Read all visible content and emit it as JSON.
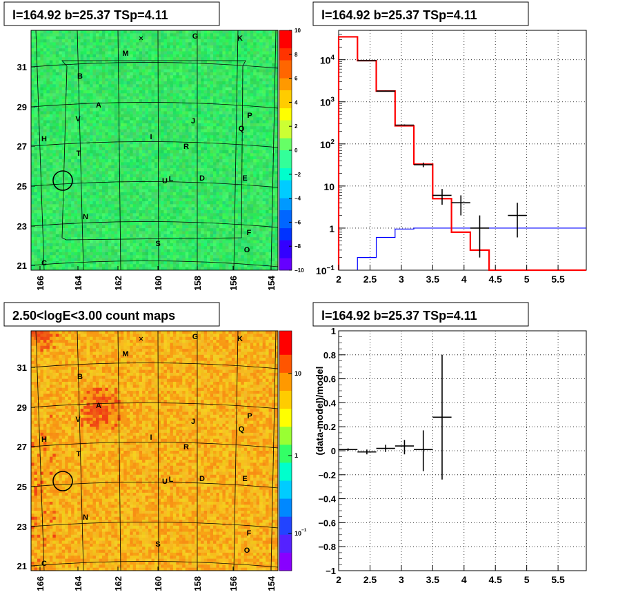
{
  "panels": {
    "top_left": {
      "title": "l=164.92 b=25.37 TSp=4.11",
      "x_ticks": [
        "166",
        "164",
        "162",
        "160",
        "158",
        "156",
        "154"
      ],
      "y_ticks": [
        "31",
        "29",
        "27",
        "25",
        "23",
        "21"
      ],
      "colorbar_ticks": [
        "10",
        "8",
        "6",
        "4",
        "2",
        "0",
        "−2",
        "−4",
        "−6",
        "−8",
        "−10"
      ],
      "sources": [
        "G",
        "K",
        "M",
        "B",
        "A",
        "V",
        "J",
        "P",
        "Q",
        "H",
        "I",
        "R",
        "T",
        "U",
        "L",
        "D",
        "E",
        "N",
        "F",
        "S",
        "O",
        "C"
      ]
    },
    "top_right": {
      "title": "l=164.92 b=25.37 TSp=4.11",
      "x_ticks": [
        "2",
        "2.5",
        "3",
        "3.5",
        "4",
        "4.5",
        "5",
        "5.5"
      ],
      "y_ticks": [
        {
          "base": "10",
          "exp": "4"
        },
        {
          "base": "10",
          "exp": "3"
        },
        {
          "base": "10",
          "exp": "2"
        },
        {
          "base": "10",
          "exp": ""
        },
        {
          "base": "1",
          "exp": ""
        },
        {
          "base": "10",
          "exp": "−1"
        }
      ]
    },
    "bottom_left": {
      "title": "2.50<logE<3.00 count maps",
      "x_ticks": [
        "166",
        "164",
        "162",
        "160",
        "158",
        "156",
        "154"
      ],
      "y_ticks": [
        "31",
        "29",
        "27",
        "25",
        "23",
        "21"
      ],
      "colorbar_ticks": [
        {
          "base": "10",
          "exp": ""
        },
        {
          "base": "1",
          "exp": ""
        },
        {
          "base": "10",
          "exp": "−1"
        }
      ],
      "sources": [
        "G",
        "K",
        "M",
        "B",
        "A",
        "V",
        "J",
        "P",
        "Q",
        "H",
        "I",
        "R",
        "T",
        "U",
        "L",
        "D",
        "E",
        "N",
        "F",
        "S",
        "O",
        "C"
      ]
    },
    "bottom_right": {
      "title": "l=164.92 b=25.37 TSp=4.11",
      "ylabel": "(data-model)/model",
      "x_ticks": [
        "2",
        "2.5",
        "3",
        "3.5",
        "4",
        "4.5",
        "5",
        "5.5"
      ],
      "y_ticks": [
        "1",
        "0.8",
        "0.6",
        "0.4",
        "0.2",
        "0",
        "−0.2",
        "−0.4",
        "−0.6",
        "−0.8",
        "−1"
      ]
    }
  },
  "chart_data": [
    {
      "type": "heatmap",
      "title": "l=164.92 b=25.37 TSp=4.11",
      "xlim": [
        166.6,
        153.4
      ],
      "ylim": [
        20.9,
        32.7
      ],
      "colorbar_range": [
        -10,
        10
      ],
      "colors": {
        "map_base": "#2ee15c",
        "markers": "#000000"
      }
    },
    {
      "type": "line",
      "title": "l=164.92 b=25.37 TSp=4.11",
      "yscale": "log",
      "xlim": [
        2,
        5.95
      ],
      "ylim": [
        0.1,
        50000
      ],
      "grid": true,
      "series": [
        {
          "color": "#ff0000",
          "edges": [
            2,
            2.3,
            2.6,
            2.9,
            3.2,
            3.5,
            3.8,
            4.1,
            4.4,
            5.95
          ],
          "values": [
            35000,
            9500,
            1800,
            270,
            33,
            5,
            0.8,
            0.3,
            0.1
          ]
        },
        {
          "color": "#0000ff",
          "edges": [
            2.3,
            2.6,
            2.9,
            3.2,
            5.95
          ],
          "values": [
            0.2,
            0.6,
            0.95,
            1
          ]
        },
        {
          "color": "#000000",
          "x": [
            2.45,
            2.75,
            3.05,
            3.35,
            3.65,
            3.95,
            4.25,
            4.85
          ],
          "xerr": 0.15,
          "y": [
            9500,
            1800,
            280,
            32,
            6,
            4,
            1,
            2
          ],
          "ylow": [
            9300,
            1750,
            270,
            28,
            3.6,
            2,
            0.2,
            0.6
          ],
          "yhigh": [
            9700,
            1850,
            290,
            36,
            8.5,
            6,
            2,
            4
          ]
        }
      ]
    },
    {
      "type": "heatmap",
      "title": "2.50<logE<3.00 count maps",
      "xlim": [
        166.6,
        153.4
      ],
      "ylim": [
        20.9,
        32.7
      ],
      "colorscale": "log",
      "colorbar_range": [
        0.03,
        40
      ],
      "colors": {
        "map_base": "#f7a21c",
        "markers": "#000000"
      }
    },
    {
      "type": "scatter",
      "title": "l=164.92 b=25.37 TSp=4.11",
      "ylabel": "(data-model)/model",
      "xlim": [
        2,
        5.95
      ],
      "ylim": [
        -1,
        1
      ],
      "grid": true,
      "series": [
        {
          "x": [
            2.15,
            2.45,
            2.75,
            3.05,
            3.35,
            3.65
          ],
          "xerr": 0.15,
          "y": [
            0.01,
            -0.01,
            0.02,
            0.04,
            0.01,
            0.28
          ],
          "ylow": [
            0.0,
            -0.03,
            -0.01,
            -0.03,
            -0.17,
            -0.24
          ],
          "yhigh": [
            0.02,
            0.01,
            0.05,
            0.09,
            0.17,
            0.8
          ]
        }
      ]
    }
  ]
}
